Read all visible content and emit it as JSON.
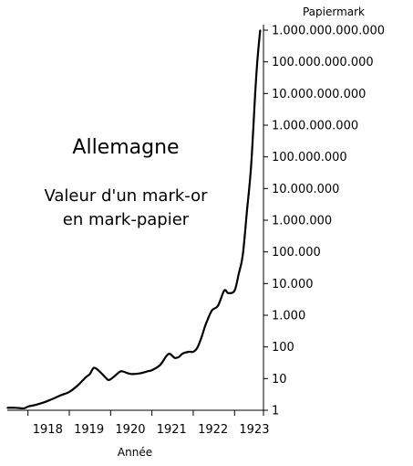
{
  "chart_data": {
    "type": "line",
    "title": "",
    "annotation": {
      "title": "Allemagne",
      "subtitle_lines": [
        "Valeur d'un mark-or",
        "en mark-papier"
      ]
    },
    "xlabel": "Année",
    "ylabel": "Papiermark",
    "y_scale": "log",
    "y_axis_position": "right",
    "xlim": [
      1917.5,
      1923.7
    ],
    "ylim": [
      1,
      1000000000000
    ],
    "x_ticks": [
      {
        "value": 1918,
        "label": "1918"
      },
      {
        "value": 1919,
        "label": "1919"
      },
      {
        "value": 1920,
        "label": "1920"
      },
      {
        "value": 1921,
        "label": "1921"
      },
      {
        "value": 1922,
        "label": "1922"
      },
      {
        "value": 1923,
        "label": "1923"
      }
    ],
    "y_ticks": [
      {
        "value": 1,
        "label": "1"
      },
      {
        "value": 10,
        "label": "10"
      },
      {
        "value": 100,
        "label": "100"
      },
      {
        "value": 1000,
        "label": "1.000"
      },
      {
        "value": 10000,
        "label": "10.000"
      },
      {
        "value": 100000,
        "label": "100.000"
      },
      {
        "value": 1000000,
        "label": "1.000.000"
      },
      {
        "value": 10000000,
        "label": "10.000.000"
      },
      {
        "value": 100000000,
        "label": "100.000.000"
      },
      {
        "value": 1000000000,
        "label": "1.000.000.000"
      },
      {
        "value": 10000000000,
        "label": "10.000.000.000"
      },
      {
        "value": 100000000000,
        "label": "100.000.000.000"
      },
      {
        "value": 1000000000000,
        "label": "1.000.000.000.000"
      }
    ],
    "grid": false,
    "series": [
      {
        "x": [
          1917.5,
          1917.7,
          1917.9,
          1918.0,
          1918.2,
          1918.4,
          1918.6,
          1918.8,
          1919.0,
          1919.2,
          1919.4,
          1919.5,
          1919.6,
          1919.75,
          1919.9,
          1919.95,
          1920.0,
          1920.1,
          1920.25,
          1920.4,
          1920.5,
          1920.7,
          1920.9,
          1921.0,
          1921.2,
          1921.4,
          1921.55,
          1921.65,
          1921.75,
          1921.9,
          1922.0,
          1922.1,
          1922.2,
          1922.3,
          1922.45,
          1922.6,
          1922.75,
          1922.85,
          1923.0,
          1923.1,
          1923.2,
          1923.3,
          1923.4,
          1923.5,
          1923.55,
          1923.62
        ],
        "values": [
          1.2,
          1.2,
          1.15,
          1.3,
          1.5,
          1.8,
          2.3,
          3.0,
          3.8,
          6.0,
          11.0,
          14.0,
          22.0,
          16.0,
          10.0,
          9.0,
          9.5,
          12.0,
          17.0,
          15.0,
          14.0,
          14.5,
          17.0,
          18.5,
          27.0,
          60.0,
          45.0,
          48.0,
          62.0,
          70.0,
          70.0,
          95.0,
          200.0,
          500.0,
          1400.0,
          2000.0,
          6000.0,
          5000.0,
          6000.0,
          20000.0,
          80000.0,
          2000000.0,
          50000000.0,
          10000000000.0,
          100000000000.0,
          1000000000000.0
        ]
      }
    ]
  }
}
